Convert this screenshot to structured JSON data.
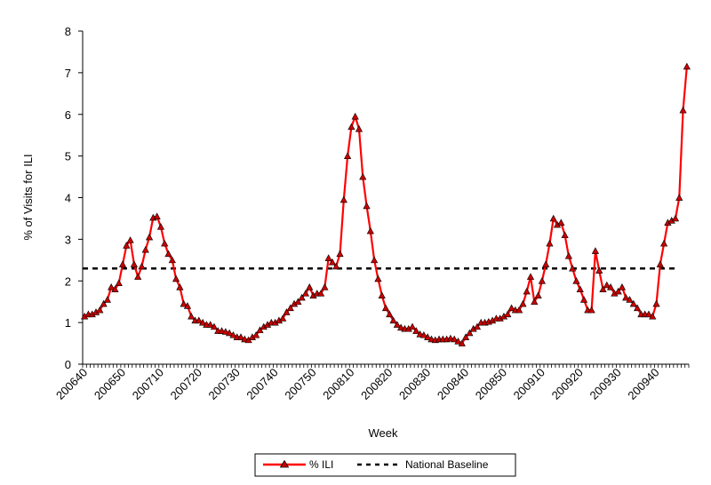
{
  "chart_data": {
    "type": "line",
    "xlabel": "Week",
    "ylabel": "% of Visits for ILI",
    "ylim": [
      0,
      8
    ],
    "yticks": [
      0,
      1,
      2,
      3,
      4,
      5,
      6,
      7,
      8
    ],
    "x_tick_labels": [
      "200640",
      "200650",
      "200710",
      "200720",
      "200730",
      "200740",
      "200750",
      "200810",
      "200820",
      "200830",
      "200840",
      "200850",
      "200910",
      "200920",
      "200930",
      "200940"
    ],
    "grid": false,
    "legend_position": "bottom",
    "series": [
      {
        "name": "% ILI",
        "color": "#ff0000",
        "marker_color": "#cc0000",
        "marker": "triangle",
        "values": [
          1.15,
          1.2,
          1.2,
          1.25,
          1.3,
          1.45,
          1.55,
          1.85,
          1.8,
          1.95,
          2.4,
          2.85,
          2.98,
          2.4,
          2.1,
          2.35,
          2.75,
          3.05,
          3.52,
          3.55,
          3.3,
          2.9,
          2.65,
          2.5,
          2.05,
          1.85,
          1.45,
          1.4,
          1.15,
          1.05,
          1.05,
          1.0,
          0.95,
          0.95,
          0.9,
          0.8,
          0.8,
          0.78,
          0.75,
          0.7,
          0.65,
          0.65,
          0.6,
          0.58,
          0.65,
          0.7,
          0.82,
          0.9,
          0.95,
          1.0,
          1.0,
          1.05,
          1.1,
          1.25,
          1.35,
          1.45,
          1.5,
          1.6,
          1.7,
          1.85,
          1.65,
          1.7,
          1.7,
          1.85,
          2.55,
          2.45,
          2.35,
          2.65,
          3.95,
          5.0,
          5.7,
          5.95,
          5.65,
          4.5,
          3.8,
          3.2,
          2.5,
          2.05,
          1.65,
          1.35,
          1.2,
          1.05,
          0.95,
          0.88,
          0.85,
          0.85,
          0.9,
          0.8,
          0.72,
          0.7,
          0.65,
          0.6,
          0.58,
          0.6,
          0.6,
          0.6,
          0.62,
          0.6,
          0.55,
          0.5,
          0.65,
          0.75,
          0.85,
          0.9,
          1.0,
          1.0,
          1.02,
          1.05,
          1.1,
          1.1,
          1.15,
          1.2,
          1.35,
          1.3,
          1.3,
          1.45,
          1.75,
          2.1,
          1.5,
          1.65,
          2.0,
          2.4,
          2.9,
          3.5,
          3.35,
          3.4,
          3.1,
          2.6,
          2.3,
          2.0,
          1.8,
          1.55,
          1.3,
          1.3,
          2.72,
          2.25,
          1.8,
          1.9,
          1.85,
          1.7,
          1.75,
          1.85,
          1.6,
          1.55,
          1.45,
          1.35,
          1.2,
          1.2,
          1.2,
          1.15,
          1.45,
          2.4,
          2.9,
          3.4,
          3.45,
          3.5,
          4.0,
          6.1,
          7.15
        ]
      },
      {
        "name": "National Baseline",
        "color": "#000000",
        "style": "dashed",
        "value": 2.3
      }
    ]
  }
}
